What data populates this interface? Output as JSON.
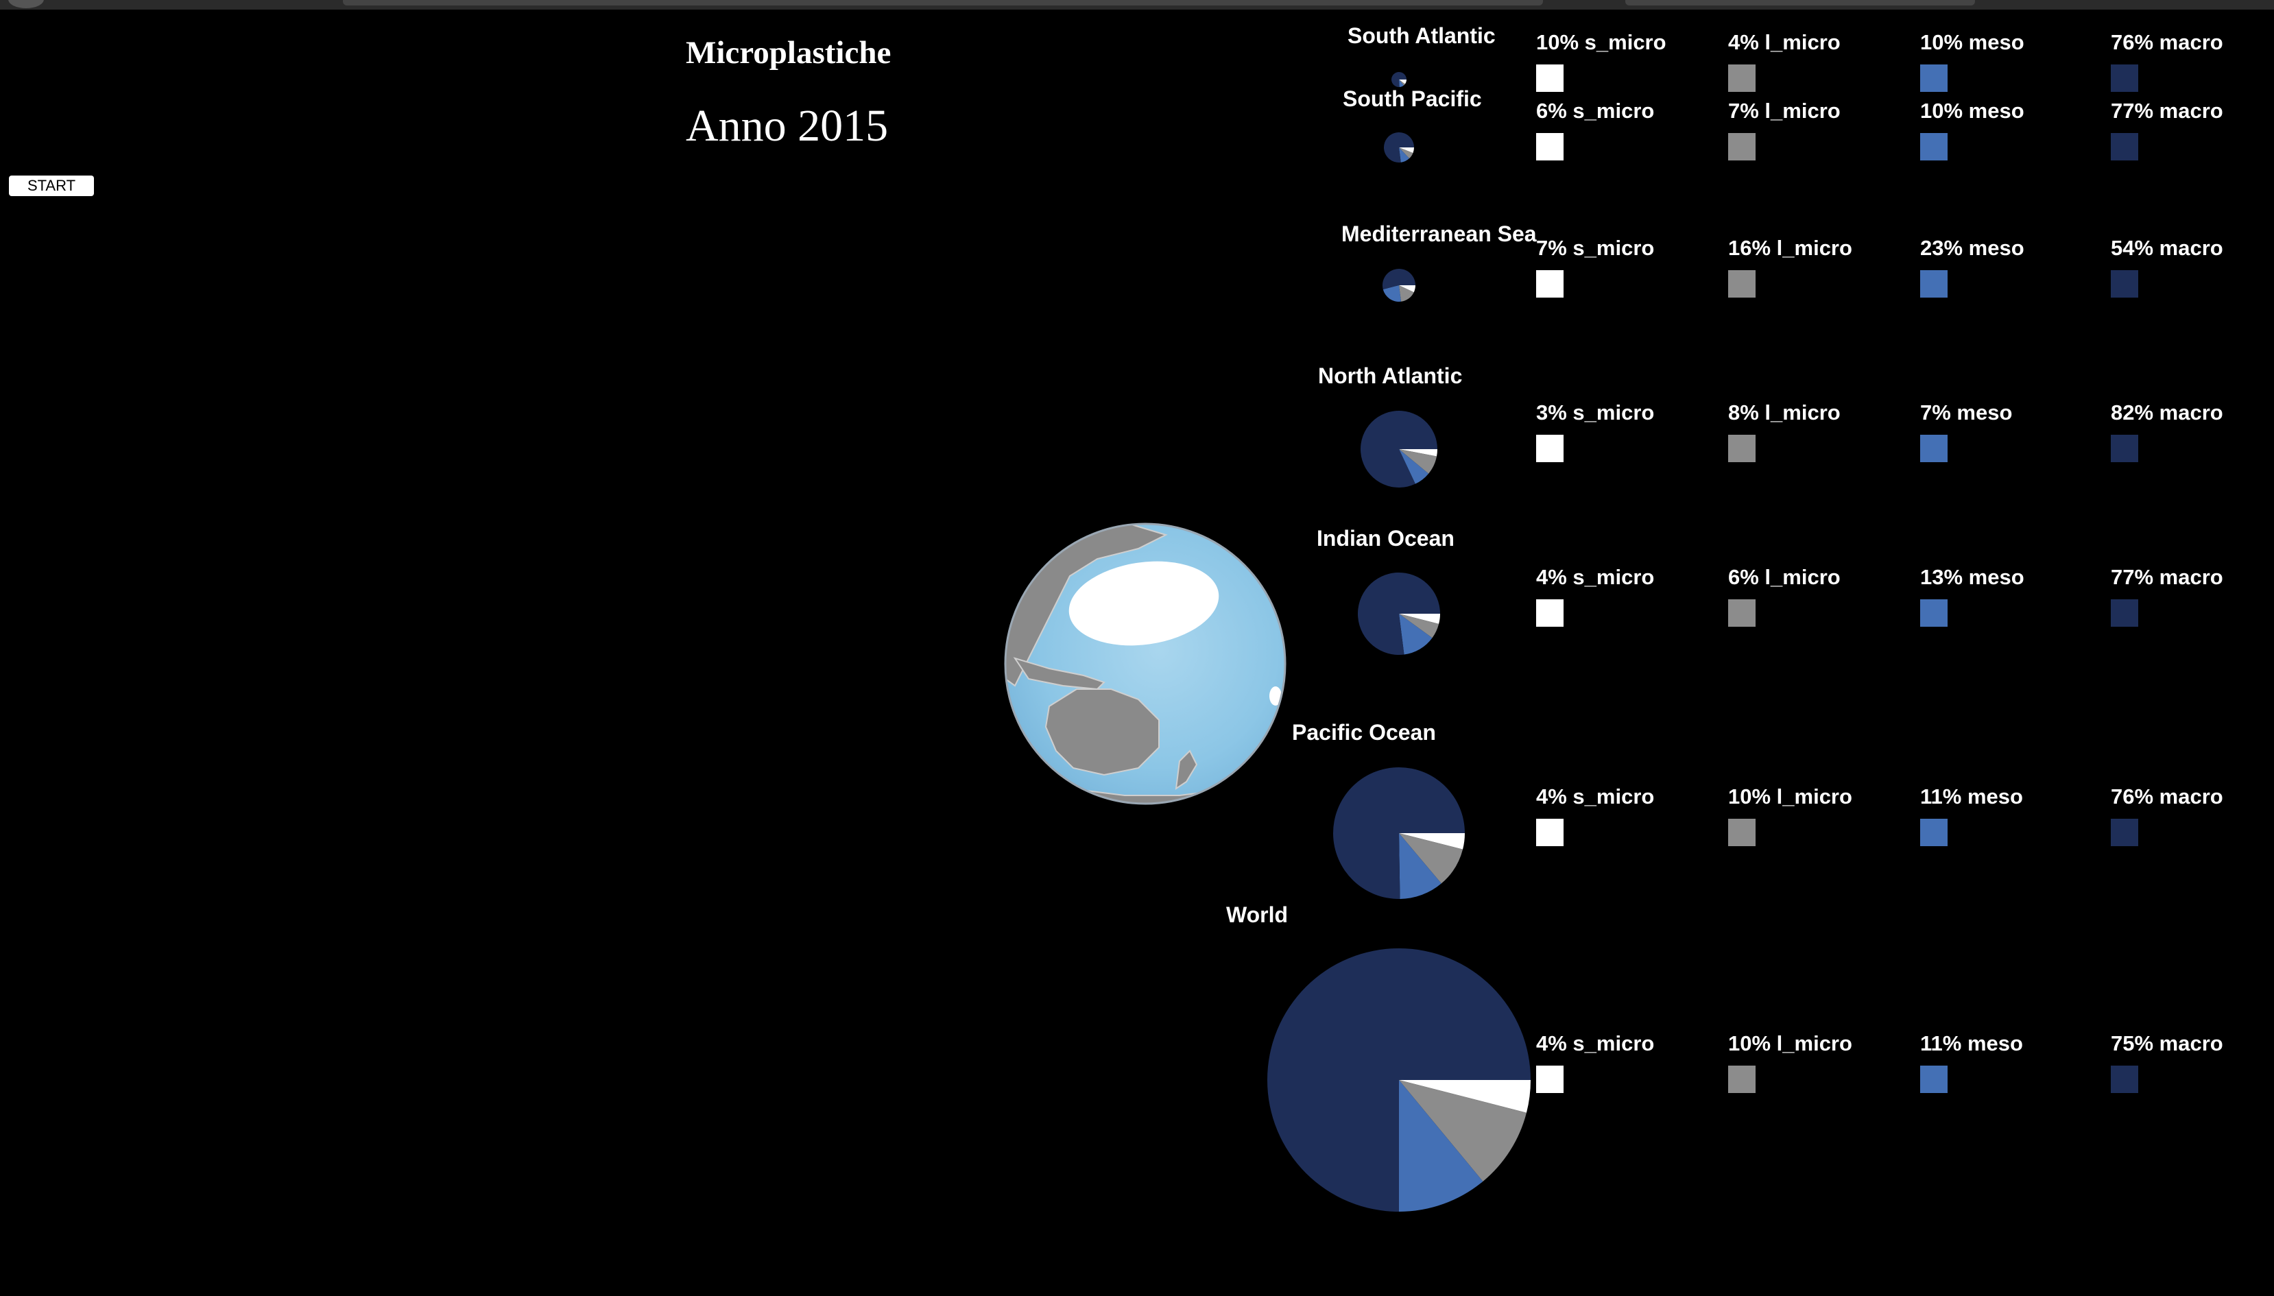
{
  "title": "Microplastiche",
  "year_label": "Anno 2015",
  "start_button": "START",
  "colors": {
    "s_micro": "#ffffff",
    "l_micro": "#8c8c8c",
    "meso": "#4470b5",
    "macro": "#1e2e58"
  },
  "icons": {
    "globe": "globe-icon"
  },
  "chart_data": {
    "type": "pie",
    "legend_keys": [
      "s_micro",
      "l_micro",
      "meso",
      "macro"
    ],
    "series": [
      {
        "name": "South Atlantic",
        "values": [
          10,
          4,
          10,
          76
        ],
        "legend": [
          "10% s_micro",
          "4% l_micro",
          "10% meso",
          "76% macro"
        ]
      },
      {
        "name": "South Pacific",
        "values": [
          6,
          7,
          10,
          77
        ],
        "legend": [
          "6% s_micro",
          "7% l_micro",
          "10% meso",
          "77% macro"
        ]
      },
      {
        "name": "Mediterranean Sea",
        "values": [
          7,
          16,
          23,
          54
        ],
        "legend": [
          "7% s_micro",
          "16% l_micro",
          "23% meso",
          "54% macro"
        ]
      },
      {
        "name": "North Atlantic",
        "values": [
          3,
          8,
          7,
          82
        ],
        "legend": [
          "3% s_micro",
          "8% l_micro",
          "7% meso",
          "82% macro"
        ]
      },
      {
        "name": "Indian Ocean",
        "values": [
          4,
          6,
          13,
          77
        ],
        "legend": [
          "4% s_micro",
          "6% l_micro",
          "13% meso",
          "77% macro"
        ]
      },
      {
        "name": "Pacific Ocean",
        "values": [
          4,
          10,
          11,
          76
        ],
        "legend": [
          "4% s_micro",
          "10% l_micro",
          "11% meso",
          "76% macro"
        ]
      },
      {
        "name": "World",
        "values": [
          4,
          10,
          11,
          75
        ],
        "legend": [
          "4% s_micro",
          "10% l_micro",
          "11% meso",
          "75% macro"
        ]
      }
    ]
  }
}
